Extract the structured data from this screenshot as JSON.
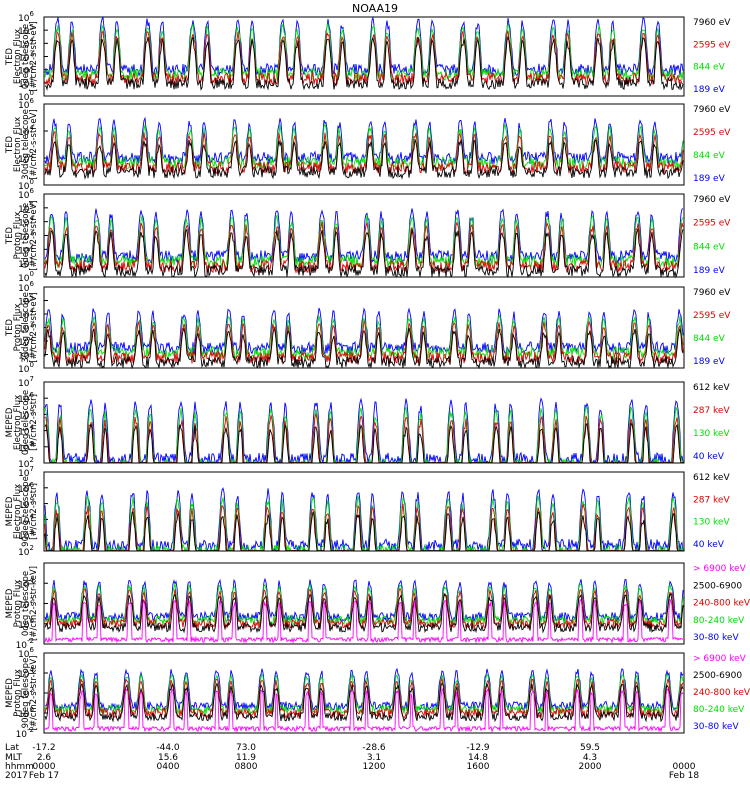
{
  "title": "NOAA19",
  "colors": {
    "black": "#000000",
    "red": "#e00000",
    "green": "#00e000",
    "blue": "#0000ff",
    "magenta": "#ff00ff"
  },
  "chart_data": [
    {
      "type": "line",
      "ylabel": [
        "TED",
        "Electron Flux",
        "0deg telescope",
        "[#/cm2-s-str-eV]"
      ],
      "yscale": "log",
      "ylim": [
        1,
        1000000
      ],
      "ticks": [
        {
          "b": "10",
          "e": "0"
        },
        {
          "b": "10",
          "e": "2"
        },
        {
          "b": "10",
          "e": "4"
        },
        {
          "b": "10",
          "e": "6"
        },
        {
          "b": "10",
          "e": "1"
        },
        {
          "b": "10",
          "e": "3"
        },
        {
          "b": "10",
          "e": "5"
        }
      ],
      "series": [
        {
          "name": "7960 eV",
          "color": "black"
        },
        {
          "name": "2595 eV",
          "color": "red"
        },
        {
          "name": "844 eV",
          "color": "green"
        },
        {
          "name": "189 eV",
          "color": "blue"
        }
      ],
      "envelope": {
        "base": 100,
        "peak": 1000000
      }
    },
    {
      "type": "line",
      "ylabel": [
        "TED",
        "Electron Flux",
        "30deg telescope",
        "[#/cm2-s-str-eV]"
      ],
      "yscale": "log",
      "ylim": [
        1,
        1000000
      ],
      "ticks": [
        {
          "b": "10",
          "e": "0"
        },
        {
          "b": "10",
          "e": "2"
        },
        {
          "b": "10",
          "e": "4"
        },
        {
          "b": "10",
          "e": "6"
        }
      ],
      "series": [
        {
          "name": "7960 eV",
          "color": "black"
        },
        {
          "name": "2595 eV",
          "color": "red"
        },
        {
          "name": "844 eV",
          "color": "green"
        },
        {
          "name": "189 eV",
          "color": "blue"
        }
      ],
      "envelope": {
        "base": 100,
        "peak": 100000
      }
    },
    {
      "type": "line",
      "ylabel": [
        "TED",
        "Proton Flux",
        "0deg telescope",
        "[#/cm2-s-str-eV]"
      ],
      "yscale": "log",
      "ylim": [
        1,
        1000000
      ],
      "ticks": [
        {
          "b": "10",
          "e": "0"
        },
        {
          "b": "10",
          "e": "2"
        },
        {
          "b": "10",
          "e": "4"
        },
        {
          "b": "10",
          "e": "6"
        },
        {
          "b": "10",
          "e": "1"
        },
        {
          "b": "10",
          "e": "3"
        },
        {
          "b": "10",
          "e": "5"
        }
      ],
      "series": [
        {
          "name": "7960 eV",
          "color": "black"
        },
        {
          "name": "2595 eV",
          "color": "red"
        },
        {
          "name": "844 eV",
          "color": "green"
        },
        {
          "name": "189 eV",
          "color": "blue"
        }
      ],
      "envelope": {
        "base": 30,
        "peak": 100000
      }
    },
    {
      "type": "line",
      "ylabel": [
        "TED",
        "Proton Flux",
        "30deg telescope",
        "[#/cm2-s-str-eV]"
      ],
      "yscale": "log",
      "ylim": [
        1,
        1000000
      ],
      "ticks": [
        {
          "b": "10",
          "e": "0"
        },
        {
          "b": "10",
          "e": "2"
        },
        {
          "b": "10",
          "e": "4"
        },
        {
          "b": "10",
          "e": "6"
        },
        {
          "b": "10",
          "e": "1"
        },
        {
          "b": "10",
          "e": "3"
        },
        {
          "b": "10",
          "e": "5"
        }
      ],
      "series": [
        {
          "name": "7960 eV",
          "color": "black"
        },
        {
          "name": "2595 eV",
          "color": "red"
        },
        {
          "name": "844 eV",
          "color": "green"
        },
        {
          "name": "189 eV",
          "color": "blue"
        }
      ],
      "envelope": {
        "base": 30,
        "peak": 30000
      }
    },
    {
      "type": "line",
      "ylabel": [
        "MEPED",
        "Electron Flux",
        "0deg telescope",
        "[#/cm2-s-str]"
      ],
      "yscale": "log",
      "ylim": [
        100,
        10000000
      ],
      "ticks": [
        {
          "b": "10",
          "e": "2"
        },
        {
          "b": "10",
          "e": "3"
        },
        {
          "b": "10",
          "e": "4"
        },
        {
          "b": "10",
          "e": "5"
        },
        {
          "b": "10",
          "e": "6"
        },
        {
          "b": "10",
          "e": "7"
        }
      ],
      "series": [
        {
          "name": "612 keV",
          "color": "black"
        },
        {
          "name": "287 keV",
          "color": "red"
        },
        {
          "name": "130 keV",
          "color": "green"
        },
        {
          "name": "40 keV",
          "color": "blue"
        }
      ],
      "envelope": {
        "base": 150,
        "peak": 1000000
      }
    },
    {
      "type": "line",
      "ylabel": [
        "MEPED",
        "Electron Flux",
        "90deg telescope",
        "[#/cm2-s-str]"
      ],
      "yscale": "log",
      "ylim": [
        100,
        10000000
      ],
      "ticks": [
        {
          "b": "10",
          "e": "2"
        },
        {
          "b": "10",
          "e": "3"
        },
        {
          "b": "10",
          "e": "4"
        },
        {
          "b": "10",
          "e": "5"
        },
        {
          "b": "10",
          "e": "6"
        },
        {
          "b": "10",
          "e": "7"
        }
      ],
      "series": [
        {
          "name": "612 keV",
          "color": "black"
        },
        {
          "name": "287 keV",
          "color": "red"
        },
        {
          "name": "130 keV",
          "color": "green"
        },
        {
          "name": "40 keV",
          "color": "blue"
        }
      ],
      "envelope": {
        "base": 200,
        "peak": 1000000
      }
    },
    {
      "type": "line",
      "ylabel": [
        "MEPED",
        "Proton Flux",
        "0deg telescope",
        "[#/cm2-s-str-keV]"
      ],
      "yscale": "log",
      "ylim": [
        0.01,
        1000000
      ],
      "ticks": [
        {
          "b": "10",
          "e": "-2"
        },
        {
          "b": "10",
          "e": "0"
        },
        {
          "b": "10",
          "e": "2"
        },
        {
          "b": "10",
          "e": "4"
        }
      ],
      "series": [
        {
          "name": "> 6900 keV",
          "color": "magenta"
        },
        {
          "name": "2500-6900",
          "color": "black"
        },
        {
          "name": "240-800 keV",
          "color": "red"
        },
        {
          "name": "80-240 keV",
          "color": "green"
        },
        {
          "name": "30-80 keV",
          "color": "blue"
        }
      ],
      "envelope": {
        "base": 5,
        "peak": 30000
      }
    },
    {
      "type": "line",
      "ylabel": [
        "MEPED",
        "Proton Flux",
        "90deg telescope",
        "[#/cm2-s-str-keV]"
      ],
      "yscale": "log",
      "ylim": [
        0.01,
        1000000
      ],
      "ticks": [
        {
          "b": "10",
          "e": "-2"
        },
        {
          "b": "10",
          "e": "0"
        },
        {
          "b": "10",
          "e": "2"
        },
        {
          "b": "10",
          "e": "4"
        },
        {
          "b": "10",
          "e": "6"
        }
      ],
      "series": [
        {
          "name": "> 6900 keV",
          "color": "magenta"
        },
        {
          "name": "2500-6900",
          "color": "black"
        },
        {
          "name": "240-800 keV",
          "color": "red"
        },
        {
          "name": "80-240 keV",
          "color": "green"
        },
        {
          "name": "30-80 keV",
          "color": "blue"
        }
      ],
      "envelope": {
        "base": 5,
        "peak": 30000
      }
    }
  ],
  "x_axis": {
    "row_labels": [
      "Lat",
      "MLT",
      "hhmm",
      "2017"
    ],
    "columns": [
      {
        "lat": "-17.2",
        "mlt": "2.6",
        "hhmm": "0000",
        "date": "Feb 17"
      },
      {
        "lat": "-44.0",
        "mlt": "15.6",
        "hhmm": "0400",
        "date": ""
      },
      {
        "lat": "73.0",
        "mlt": "11.9",
        "hhmm": "0800",
        "date": ""
      },
      {
        "lat": "-28.6",
        "mlt": "3.1",
        "hhmm": "1200",
        "date": ""
      },
      {
        "lat": "-12.9",
        "mlt": "14.8",
        "hhmm": "1600",
        "date": ""
      },
      {
        "lat": "59.5",
        "mlt": "4.3",
        "hhmm": "2000",
        "date": ""
      },
      {
        "lat": "",
        "mlt": "",
        "hhmm": "0000",
        "date": "Feb 18"
      }
    ]
  }
}
